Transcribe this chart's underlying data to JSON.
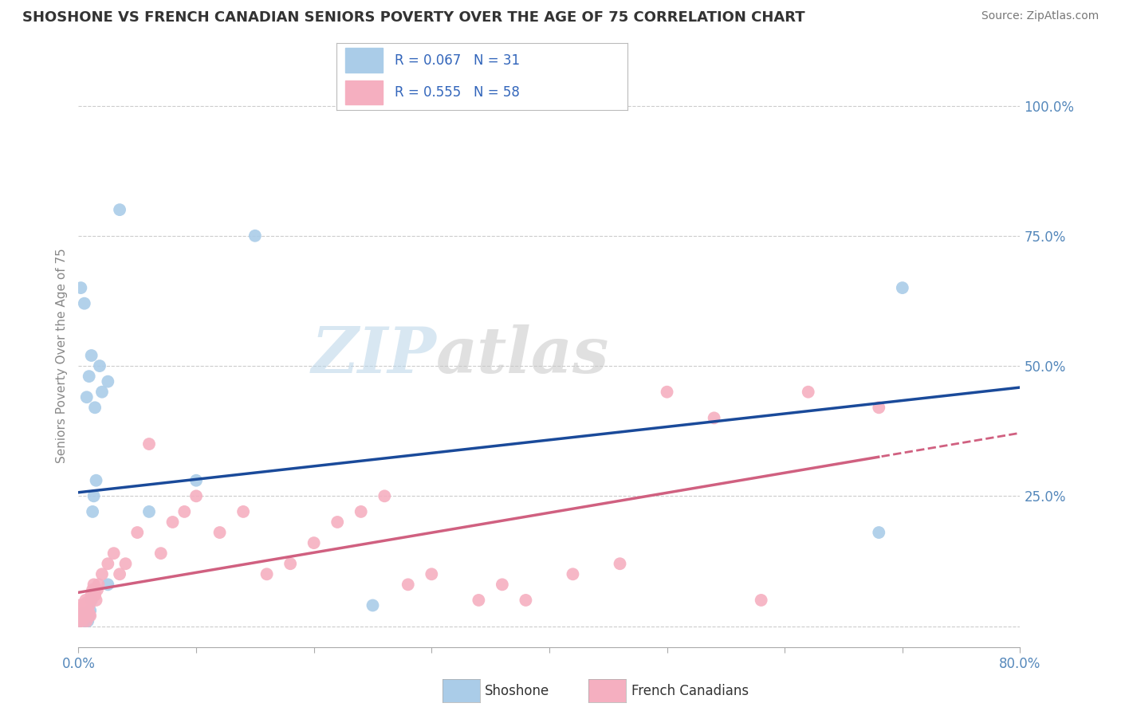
{
  "title": "SHOSHONE VS FRENCH CANADIAN SENIORS POVERTY OVER THE AGE OF 75 CORRELATION CHART",
  "source": "Source: ZipAtlas.com",
  "ylabel": "Seniors Poverty Over the Age of 75",
  "xlim": [
    0.0,
    0.8
  ],
  "ylim": [
    -0.04,
    1.08
  ],
  "shoshone_R": 0.067,
  "shoshone_N": 31,
  "french_R": 0.555,
  "french_N": 58,
  "watermark_zip": "ZIP",
  "watermark_atlas": "atlas",
  "shoshone_color": "#aacce8",
  "french_color": "#f5afc0",
  "shoshone_line_color": "#1a4a9a",
  "french_line_color": "#d06080",
  "legend_text_color": "#3366bb",
  "background_color": "#ffffff",
  "grid_color": "#cccccc",
  "title_color": "#333333",
  "axis_label_color": "#5588bb",
  "ylabel_color": "#888888",
  "shoshone_x": [
    0.001,
    0.002,
    0.003,
    0.004,
    0.005,
    0.006,
    0.007,
    0.008,
    0.009,
    0.01,
    0.011,
    0.012,
    0.013,
    0.015,
    0.02,
    0.025,
    0.005,
    0.007,
    0.009,
    0.011,
    0.014,
    0.018,
    0.025,
    0.035,
    0.06,
    0.1,
    0.15,
    0.25,
    0.68,
    0.7,
    0.002
  ],
  "shoshone_y": [
    0.01,
    0.02,
    0.015,
    0.025,
    0.01,
    0.02,
    0.015,
    0.01,
    0.02,
    0.03,
    0.05,
    0.22,
    0.25,
    0.28,
    0.45,
    0.47,
    0.62,
    0.44,
    0.48,
    0.52,
    0.42,
    0.5,
    0.08,
    0.8,
    0.22,
    0.28,
    0.75,
    0.04,
    0.18,
    0.65,
    0.65
  ],
  "french_x": [
    0.001,
    0.002,
    0.003,
    0.004,
    0.005,
    0.006,
    0.007,
    0.008,
    0.009,
    0.01,
    0.001,
    0.002,
    0.003,
    0.004,
    0.005,
    0.006,
    0.007,
    0.008,
    0.009,
    0.01,
    0.011,
    0.012,
    0.013,
    0.014,
    0.015,
    0.016,
    0.017,
    0.02,
    0.025,
    0.03,
    0.035,
    0.04,
    0.05,
    0.06,
    0.07,
    0.08,
    0.09,
    0.1,
    0.12,
    0.14,
    0.16,
    0.18,
    0.2,
    0.22,
    0.24,
    0.26,
    0.28,
    0.3,
    0.34,
    0.36,
    0.38,
    0.42,
    0.46,
    0.5,
    0.54,
    0.58,
    0.62,
    0.68
  ],
  "french_y": [
    0.01,
    0.015,
    0.01,
    0.02,
    0.015,
    0.025,
    0.01,
    0.02,
    0.025,
    0.02,
    0.04,
    0.035,
    0.03,
    0.02,
    0.04,
    0.05,
    0.045,
    0.03,
    0.04,
    0.05,
    0.06,
    0.07,
    0.08,
    0.06,
    0.05,
    0.07,
    0.08,
    0.1,
    0.12,
    0.14,
    0.1,
    0.12,
    0.18,
    0.35,
    0.14,
    0.2,
    0.22,
    0.25,
    0.18,
    0.22,
    0.1,
    0.12,
    0.16,
    0.2,
    0.22,
    0.25,
    0.08,
    0.1,
    0.05,
    0.08,
    0.05,
    0.1,
    0.12,
    0.45,
    0.4,
    0.05,
    0.45,
    0.42
  ]
}
